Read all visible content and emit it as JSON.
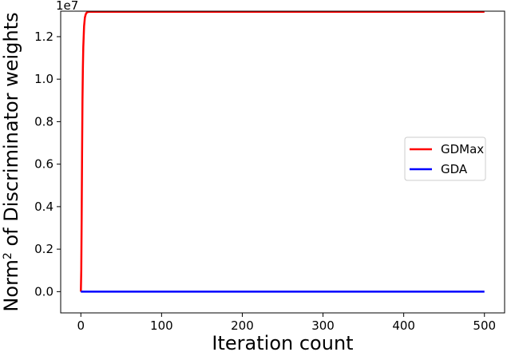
{
  "chart_data": {
    "type": "line",
    "xlabel": "Iteration count",
    "ylabel_main": "Norm",
    "ylabel_sup": "2",
    "ylabel_rest": " of Discriminator weights",
    "offset_text": "1e7",
    "xlim": [
      -25,
      525
    ],
    "ylim": [
      -0.1,
      1.32
    ],
    "x_ticks": [
      0,
      100,
      200,
      300,
      400,
      500
    ],
    "y_ticks": [
      0.0,
      0.2,
      0.4,
      0.6,
      0.8,
      1.0,
      1.2
    ],
    "y_tick_labels": [
      "0.0",
      "0.2",
      "0.4",
      "0.6",
      "0.8",
      "1.0",
      "1.2"
    ],
    "legend_position": "center-right",
    "series": [
      {
        "name": "GDMax",
        "color": "#ff0000",
        "x": [
          0,
          0.5,
          1,
          1.5,
          2,
          2.5,
          3,
          4,
          5,
          6,
          7,
          8,
          10,
          500
        ],
        "y": [
          0.0,
          0.1,
          0.35,
          0.65,
          0.9,
          1.05,
          1.15,
          1.25,
          1.29,
          1.305,
          1.312,
          1.315,
          1.317,
          1.317
        ]
      },
      {
        "name": "GDA",
        "color": "#0000ff",
        "x": [
          0,
          500
        ],
        "y": [
          0.0,
          0.0
        ]
      }
    ]
  }
}
